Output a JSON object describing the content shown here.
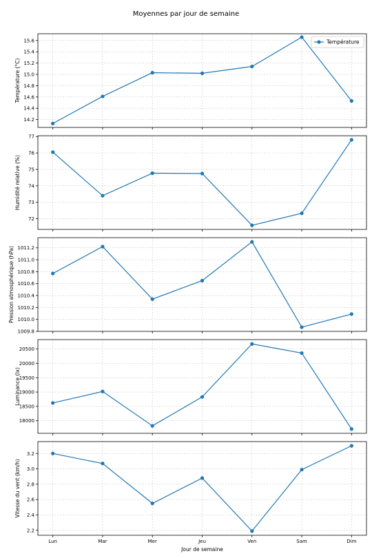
{
  "title": "Moyennes par jour de semaine",
  "xlabel": "Jour de semaine",
  "color": "#1f77b4",
  "chart_data": [
    {
      "type": "line",
      "categories": [
        "Lun",
        "Mar",
        "Mer",
        "Jeu",
        "Ven",
        "Sam",
        "Dim"
      ],
      "series": [
        {
          "name": "Température",
          "values": [
            14.13,
            14.61,
            15.03,
            15.02,
            15.14,
            15.66,
            14.53
          ]
        }
      ],
      "ylabel": "Température (°C)",
      "ylim": [
        14.06,
        15.72
      ],
      "yticks": [
        14.2,
        14.4,
        14.6,
        14.8,
        15.0,
        15.2,
        15.4,
        15.6
      ],
      "grid": true,
      "legend": "upper right"
    },
    {
      "type": "line",
      "categories": [
        "Lun",
        "Mar",
        "Mer",
        "Jeu",
        "Ven",
        "Sam",
        "Dim"
      ],
      "series": [
        {
          "values": [
            76.05,
            73.4,
            74.77,
            74.75,
            71.6,
            72.33,
            76.8
          ]
        }
      ],
      "ylabel": "Humidité relative (%)",
      "ylim": [
        71.35,
        77.05
      ],
      "yticks": [
        72,
        73,
        74,
        75,
        76,
        77
      ],
      "grid": true
    },
    {
      "type": "line",
      "categories": [
        "Lun",
        "Mar",
        "Mer",
        "Jeu",
        "Ven",
        "Sam",
        "Dim"
      ],
      "series": [
        {
          "values": [
            1010.77,
            1011.22,
            1010.34,
            1010.65,
            1011.3,
            1009.87,
            1010.09
          ]
        }
      ],
      "ylabel": "Pression atmosphérique (hPa)",
      "ylim": [
        1009.8,
        1011.37
      ],
      "yticks": [
        1009.8,
        1010.0,
        1010.2,
        1010.4,
        1010.6,
        1010.8,
        1011.0,
        1011.2
      ],
      "grid": true
    },
    {
      "type": "line",
      "categories": [
        "Lun",
        "Mar",
        "Mer",
        "Jeu",
        "Ven",
        "Sam",
        "Dim"
      ],
      "series": [
        {
          "values": [
            18620,
            19020,
            17820,
            18830,
            20680,
            20360,
            17710
          ]
        }
      ],
      "ylabel": "Luminance (lx)",
      "ylim": [
        17560,
        20830
      ],
      "yticks": [
        18000,
        18500,
        19000,
        19500,
        20000,
        20500
      ],
      "grid": true
    },
    {
      "type": "line",
      "categories": [
        "Lun",
        "Mar",
        "Mer",
        "Jeu",
        "Ven",
        "Sam",
        "Dim"
      ],
      "series": [
        {
          "values": [
            3.2,
            3.07,
            2.55,
            2.88,
            2.19,
            2.99,
            3.3
          ]
        }
      ],
      "ylabel": "Vitesse du vent (km/h)",
      "ylim": [
        2.135,
        3.355
      ],
      "yticks": [
        2.2,
        2.4,
        2.6,
        2.8,
        3.0,
        3.2
      ],
      "grid": true
    }
  ]
}
